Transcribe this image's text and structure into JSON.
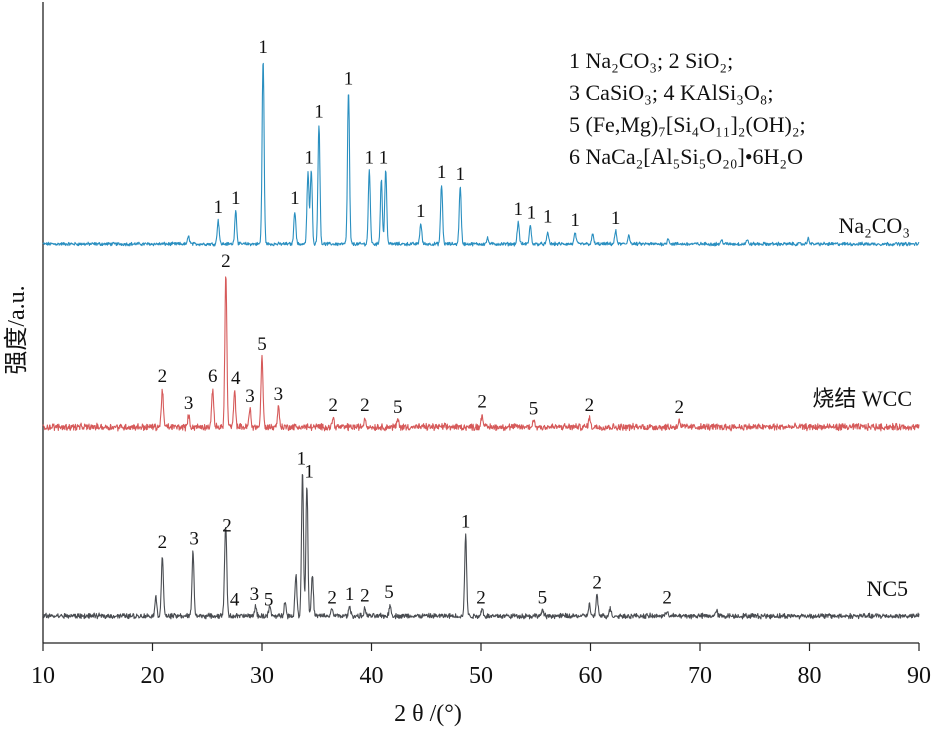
{
  "chart_data": {
    "type": "line",
    "xlabel": "2 θ /(°)",
    "ylabel": "强度/a.u.",
    "xlim": [
      10,
      90
    ],
    "xticks": [
      10,
      20,
      30,
      40,
      50,
      60,
      70,
      80,
      90
    ],
    "tick_labels": [
      "10",
      "20",
      "30",
      "40",
      "50",
      "60",
      "70",
      "80",
      "90"
    ],
    "legend_lines": [
      "1 Na₂CO₃; 2 SiO₂;",
      "3 CaSiO₃; 4 KAlSi₃O₈;",
      "5 (Fe,Mg)₇[Si₄O₁₁]₂(OH)₂;",
      "6 NaCa₂[Al₅Si₅O₂₀]•6H₂O"
    ],
    "series": [
      {
        "name": "Na₂CO₃",
        "color": "#2a8fc0",
        "baseline": 0.0,
        "noise": 0.015,
        "peaks": [
          [
            23.3,
            0.04
          ],
          [
            26.0,
            0.13
          ],
          [
            27.6,
            0.18
          ],
          [
            30.1,
            1.0
          ],
          [
            33.0,
            0.18
          ],
          [
            34.2,
            0.39
          ],
          [
            34.5,
            0.4
          ],
          [
            35.2,
            0.65
          ],
          [
            37.9,
            0.83
          ],
          [
            39.8,
            0.4
          ],
          [
            40.9,
            0.35
          ],
          [
            41.3,
            0.4
          ],
          [
            44.5,
            0.11
          ],
          [
            46.4,
            0.32
          ],
          [
            48.1,
            0.31
          ],
          [
            50.6,
            0.03
          ],
          [
            53.4,
            0.12
          ],
          [
            54.5,
            0.1
          ],
          [
            56.1,
            0.06
          ],
          [
            58.6,
            0.06
          ],
          [
            60.2,
            0.05
          ],
          [
            62.3,
            0.07
          ],
          [
            63.5,
            0.05
          ],
          [
            67.1,
            0.03
          ],
          [
            72.0,
            0.02
          ],
          [
            74.3,
            0.02
          ],
          [
            79.9,
            0.03
          ]
        ],
        "peak_labels": [
          {
            "x": 26.0,
            "h": 0.13,
            "text": "1"
          },
          {
            "x": 27.6,
            "h": 0.18,
            "text": "1"
          },
          {
            "x": 30.1,
            "h": 1.0,
            "text": "1"
          },
          {
            "x": 33.0,
            "h": 0.18,
            "text": "1"
          },
          {
            "x": 34.3,
            "h": 0.4,
            "text": "1"
          },
          {
            "x": 35.2,
            "h": 0.65,
            "text": "1"
          },
          {
            "x": 37.9,
            "h": 0.83,
            "text": "1"
          },
          {
            "x": 39.8,
            "h": 0.4,
            "text": "1"
          },
          {
            "x": 41.1,
            "h": 0.4,
            "text": "1"
          },
          {
            "x": 44.5,
            "h": 0.11,
            "text": "1"
          },
          {
            "x": 46.4,
            "h": 0.32,
            "text": "1"
          },
          {
            "x": 48.1,
            "h": 0.31,
            "text": "1"
          },
          {
            "x": 53.4,
            "h": 0.12,
            "text": "1"
          },
          {
            "x": 54.6,
            "h": 0.1,
            "text": "1"
          },
          {
            "x": 56.1,
            "h": 0.08,
            "text": "1"
          },
          {
            "x": 58.6,
            "h": 0.06,
            "text": "1"
          },
          {
            "x": 62.3,
            "h": 0.07,
            "text": "1"
          }
        ]
      },
      {
        "name": "烧结 WCC",
        "color": "#d65a5a",
        "baseline": 0.0,
        "noise": 0.03,
        "peaks": [
          [
            20.9,
            0.21
          ],
          [
            23.3,
            0.06
          ],
          [
            25.5,
            0.21
          ],
          [
            26.7,
            0.85
          ],
          [
            27.5,
            0.19
          ],
          [
            28.9,
            0.1
          ],
          [
            30.0,
            0.39
          ],
          [
            31.5,
            0.11
          ],
          [
            36.5,
            0.05
          ],
          [
            39.4,
            0.05
          ],
          [
            42.4,
            0.04
          ],
          [
            50.1,
            0.07
          ],
          [
            54.8,
            0.04
          ],
          [
            59.9,
            0.05
          ],
          [
            68.1,
            0.04
          ]
        ],
        "peak_labels": [
          {
            "x": 20.9,
            "h": 0.21,
            "text": "2"
          },
          {
            "x": 23.3,
            "h": 0.06,
            "text": "3"
          },
          {
            "x": 25.5,
            "h": 0.21,
            "text": "6"
          },
          {
            "x": 26.7,
            "h": 0.85,
            "text": "2"
          },
          {
            "x": 27.6,
            "h": 0.2,
            "text": "4"
          },
          {
            "x": 28.9,
            "h": 0.1,
            "text": "3"
          },
          {
            "x": 30.0,
            "h": 0.39,
            "text": "5"
          },
          {
            "x": 31.5,
            "h": 0.11,
            "text": "3"
          },
          {
            "x": 36.5,
            "h": 0.05,
            "text": "2"
          },
          {
            "x": 39.4,
            "h": 0.05,
            "text": "2"
          },
          {
            "x": 42.4,
            "h": 0.04,
            "text": "5"
          },
          {
            "x": 50.1,
            "h": 0.07,
            "text": "2"
          },
          {
            "x": 54.8,
            "h": 0.03,
            "text": "5"
          },
          {
            "x": 59.9,
            "h": 0.05,
            "text": "2"
          },
          {
            "x": 68.1,
            "h": 0.04,
            "text": "2"
          }
        ]
      },
      {
        "name": "NC5",
        "color": "#4a4d52",
        "baseline": 0.0,
        "noise": 0.022,
        "peaks": [
          [
            20.3,
            0.1
          ],
          [
            20.9,
            0.33
          ],
          [
            23.7,
            0.35
          ],
          [
            26.6,
            0.12
          ],
          [
            26.7,
            0.42
          ],
          [
            29.4,
            0.05
          ],
          [
            30.7,
            0.05
          ],
          [
            32.1,
            0.08
          ],
          [
            33.1,
            0.22
          ],
          [
            33.7,
            0.78
          ],
          [
            34.1,
            0.71
          ],
          [
            34.6,
            0.22
          ],
          [
            36.4,
            0.04
          ],
          [
            38.0,
            0.05
          ],
          [
            39.4,
            0.04
          ],
          [
            41.7,
            0.06
          ],
          [
            48.6,
            0.44
          ],
          [
            50.1,
            0.04
          ],
          [
            55.6,
            0.03
          ],
          [
            59.9,
            0.06
          ],
          [
            60.6,
            0.11
          ],
          [
            61.8,
            0.04
          ],
          [
            67.0,
            0.03
          ],
          [
            71.5,
            0.03
          ]
        ],
        "peak_labels": [
          {
            "x": 20.9,
            "h": 0.33,
            "text": "2"
          },
          {
            "x": 23.8,
            "h": 0.35,
            "text": "3"
          },
          {
            "x": 26.8,
            "h": 0.42,
            "text": "2"
          },
          {
            "x": 27.5,
            "h": 0.02,
            "text": "4"
          },
          {
            "x": 29.3,
            "h": 0.05,
            "text": "3"
          },
          {
            "x": 30.6,
            "h": 0.02,
            "text": "5"
          },
          {
            "x": 33.6,
            "h": 0.78,
            "text": "1"
          },
          {
            "x": 34.3,
            "h": 0.71,
            "text": "1"
          },
          {
            "x": 36.4,
            "h": 0.03,
            "text": "2"
          },
          {
            "x": 38.0,
            "h": 0.05,
            "text": "1"
          },
          {
            "x": 39.4,
            "h": 0.04,
            "text": "2"
          },
          {
            "x": 41.6,
            "h": 0.06,
            "text": "5"
          },
          {
            "x": 48.6,
            "h": 0.44,
            "text": "1"
          },
          {
            "x": 50.0,
            "h": 0.03,
            "text": "2"
          },
          {
            "x": 55.6,
            "h": 0.03,
            "text": "5"
          },
          {
            "x": 60.6,
            "h": 0.11,
            "text": "2"
          },
          {
            "x": 67.0,
            "h": 0.03,
            "text": "2"
          }
        ]
      }
    ]
  }
}
